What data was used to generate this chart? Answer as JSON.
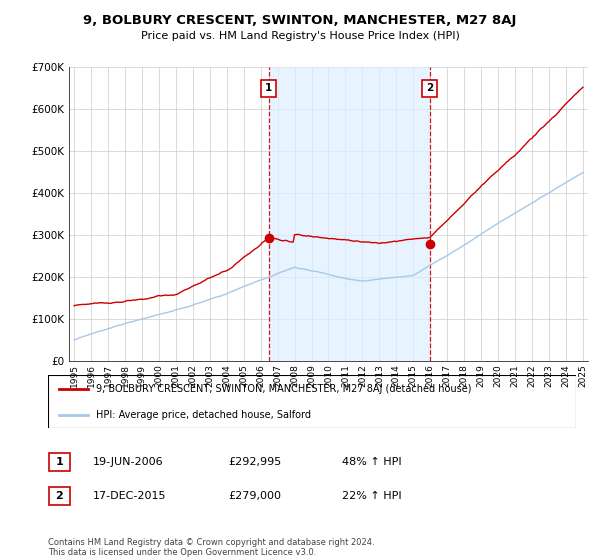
{
  "title": "9, BOLBURY CRESCENT, SWINTON, MANCHESTER, M27 8AJ",
  "subtitle": "Price paid vs. HM Land Registry's House Price Index (HPI)",
  "ylim": [
    0,
    700000
  ],
  "yticks": [
    0,
    100000,
    200000,
    300000,
    400000,
    500000,
    600000,
    700000
  ],
  "ytick_labels": [
    "£0",
    "£100K",
    "£200K",
    "£300K",
    "£400K",
    "£500K",
    "£600K",
    "£700K"
  ],
  "hpi_color": "#a8c8e8",
  "price_color": "#cc0000",
  "vline_color": "#cc0000",
  "shade_color": "#ddeeff",
  "transaction1_date": 2006.47,
  "transaction1_price": 292995,
  "transaction1_label": "1",
  "transaction2_date": 2015.96,
  "transaction2_price": 279000,
  "transaction2_label": "2",
  "legend_line1": "9, BOLBURY CRESCENT, SWINTON, MANCHESTER, M27 8AJ (detached house)",
  "legend_line2": "HPI: Average price, detached house, Salford",
  "table_row1": [
    "1",
    "19-JUN-2006",
    "£292,995",
    "48% ↑ HPI"
  ],
  "table_row2": [
    "2",
    "17-DEC-2015",
    "£279,000",
    "22% ↑ HPI"
  ],
  "footer": "Contains HM Land Registry data © Crown copyright and database right 2024.\nThis data is licensed under the Open Government Licence v3.0.",
  "background_color": "#ffffff",
  "grid_color": "#cccccc"
}
